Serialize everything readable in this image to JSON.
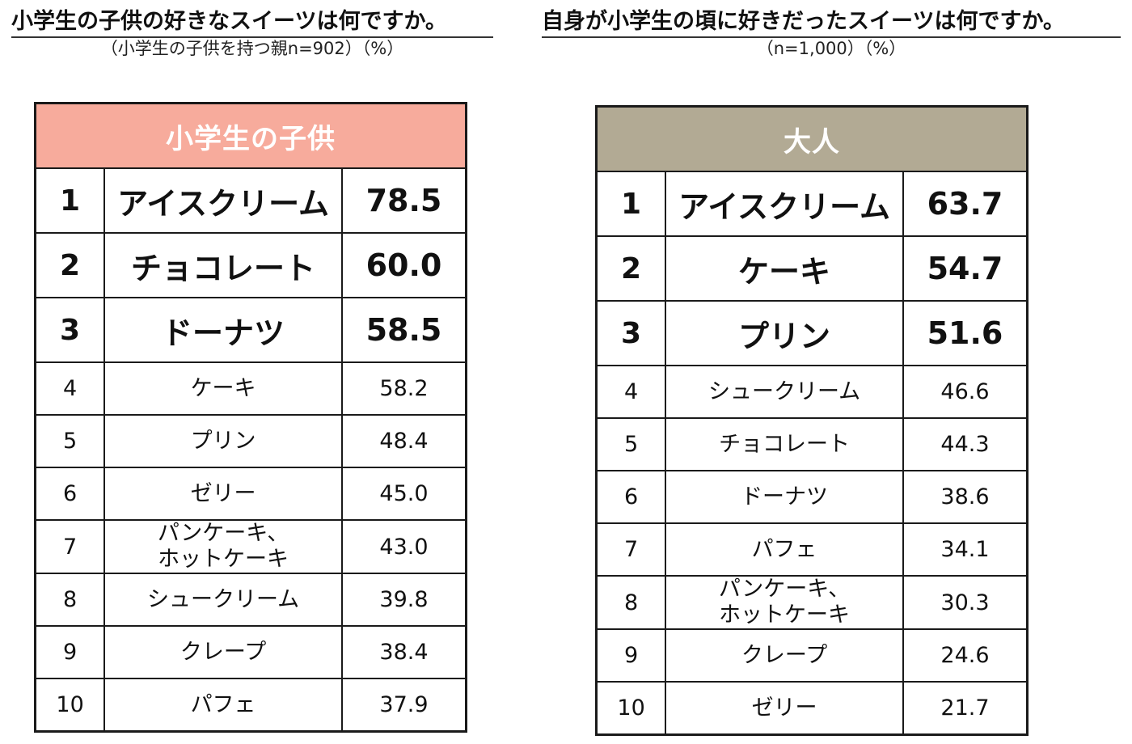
{
  "left": {
    "title": "小学生の子供の好きなスイーツは何ですか。",
    "subtitle": "（小学生の子供を持つ親n=902）（%）",
    "header": "小学生の子供",
    "header_color": "#f7ab9c",
    "rows": [
      {
        "rank": "1",
        "name": "アイスクリーム",
        "value": "78.5"
      },
      {
        "rank": "2",
        "name": "チョコレート",
        "value": "60.0"
      },
      {
        "rank": "3",
        "name": "ドーナツ",
        "value": "58.5"
      },
      {
        "rank": "4",
        "name": "ケーキ",
        "value": "58.2"
      },
      {
        "rank": "5",
        "name": "プリン",
        "value": "48.4"
      },
      {
        "rank": "6",
        "name": "ゼリー",
        "value": "45.0"
      },
      {
        "rank": "7",
        "name": "パンケーキ、\nホットケーキ",
        "value": "43.0"
      },
      {
        "rank": "8",
        "name": "シュークリーム",
        "value": "39.8"
      },
      {
        "rank": "9",
        "name": "クレープ",
        "value": "38.4"
      },
      {
        "rank": "10",
        "name": "パフェ",
        "value": "37.9"
      }
    ]
  },
  "right": {
    "title": "自身が小学生の頃に好きだったスイーツは何ですか。",
    "subtitle": "（n=1,000）（%）",
    "header": "大人",
    "header_color": "#b2aa94",
    "rows": [
      {
        "rank": "1",
        "name": "アイスクリーム",
        "value": "63.7"
      },
      {
        "rank": "2",
        "name": "ケーキ",
        "value": "54.7"
      },
      {
        "rank": "3",
        "name": "プリン",
        "value": "51.6"
      },
      {
        "rank": "4",
        "name": "シュークリーム",
        "value": "46.6"
      },
      {
        "rank": "5",
        "name": "チョコレート",
        "value": "44.3"
      },
      {
        "rank": "6",
        "name": "ドーナツ",
        "value": "38.6"
      },
      {
        "rank": "7",
        "name": "パフェ",
        "value": "34.1"
      },
      {
        "rank": "8",
        "name": "パンケーキ、\nホットケーキ",
        "value": "30.3"
      },
      {
        "rank": "9",
        "name": "クレープ",
        "value": "24.6"
      },
      {
        "rank": "10",
        "name": "ゼリー",
        "value": "21.7"
      }
    ]
  }
}
